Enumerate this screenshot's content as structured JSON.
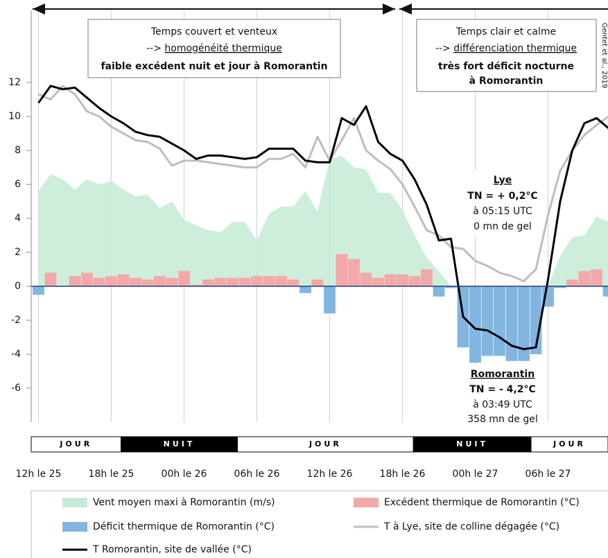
{
  "chart_data": {
    "type": "combo",
    "xlim": [
      -0.6,
      47
    ],
    "xticks": [
      {
        "value": 0,
        "label": "12h le 25"
      },
      {
        "value": 6,
        "label": "18h le 25"
      },
      {
        "value": 12,
        "label": "00h le 26"
      },
      {
        "value": 18,
        "label": "06h le 26"
      },
      {
        "value": 24,
        "label": "12h le 26"
      },
      {
        "value": 30,
        "label": "18h le 26"
      },
      {
        "value": 36,
        "label": "00h le 27"
      },
      {
        "value": 42,
        "label": "06h le 27"
      }
    ],
    "ylim": [
      -8,
      16
    ],
    "yticks": [
      -6,
      -4,
      -2,
      0,
      2,
      4,
      6,
      8,
      10,
      12
    ],
    "grid": true,
    "x": [
      0,
      1,
      2,
      3,
      4,
      5,
      6,
      7,
      8,
      9,
      10,
      11,
      12,
      13,
      14,
      15,
      16,
      17,
      18,
      19,
      20,
      21,
      22,
      23,
      24,
      25,
      26,
      27,
      28,
      29,
      30,
      31,
      32,
      33,
      34,
      35,
      36,
      37,
      38,
      39,
      40,
      41,
      42,
      43,
      44,
      45,
      46,
      47
    ],
    "series": [
      {
        "name": "Vent moyen maxi à Romorantin (m/s)",
        "type": "area",
        "color": "#c6ebd6",
        "values": [
          5.6,
          6.6,
          6.3,
          5.7,
          6.3,
          6.0,
          6.2,
          5.7,
          5.3,
          5.4,
          4.6,
          5.0,
          3.9,
          3.6,
          3.3,
          3.2,
          3.8,
          3.8,
          2.7,
          4.3,
          4.7,
          4.7,
          5.6,
          4.4,
          7.5,
          7.7,
          7.0,
          6.9,
          5.5,
          5.5,
          4.5,
          3.0,
          1.7,
          0.9,
          0,
          0,
          0,
          0,
          0,
          0,
          0,
          0,
          0,
          1.8,
          2.9,
          3.0,
          4.1,
          3.8
        ]
      },
      {
        "name": "Excédent thermique de Romorantin (°C)",
        "type": "bar",
        "color": "#f4a9a8",
        "values": [
          null,
          0.8,
          0,
          0.6,
          0.8,
          0.5,
          0.6,
          0.7,
          0.5,
          0.4,
          0.6,
          0.5,
          0.9,
          0.1,
          0.4,
          0.5,
          0.5,
          0.5,
          0.6,
          0.6,
          0.6,
          0.4,
          null,
          0.4,
          null,
          1.9,
          1.6,
          0.8,
          0.5,
          0.7,
          0.7,
          0.6,
          1.0,
          null,
          null,
          null,
          null,
          null,
          null,
          null,
          null,
          null,
          null,
          null,
          0.4,
          0.9,
          1.0,
          null
        ]
      },
      {
        "name": "Déficit thermique de Romorantin (°C)",
        "type": "bar",
        "color": "#82b6e0",
        "values": [
          -0.5,
          null,
          null,
          null,
          null,
          null,
          null,
          null,
          null,
          null,
          null,
          null,
          null,
          null,
          null,
          null,
          null,
          null,
          null,
          null,
          null,
          null,
          -0.4,
          null,
          -1.6,
          null,
          null,
          null,
          null,
          null,
          null,
          null,
          null,
          -0.6,
          -0.1,
          -3.6,
          -4.5,
          -4.1,
          -4.1,
          -4.4,
          -4.4,
          -4.0,
          -1.2,
          -0.1,
          null,
          null,
          null,
          -0.6
        ]
      },
      {
        "name": "T à Lye, site de colline dégagée (°C)",
        "type": "line",
        "color": "#bdbdbd",
        "values": [
          11.3,
          11.0,
          11.8,
          11.3,
          10.3,
          10.0,
          9.4,
          9.0,
          8.6,
          8.5,
          8.1,
          7.1,
          7.4,
          7.4,
          7.3,
          7.2,
          7.1,
          7.0,
          7.0,
          7.5,
          7.5,
          7.8,
          7.0,
          8.8,
          7.4,
          8.6,
          9.9,
          8.0,
          7.4,
          6.9,
          6.0,
          4.7,
          3.3,
          3.0,
          2.3,
          2.2,
          1.5,
          1.2,
          0.8,
          0.6,
          0.3,
          1.0,
          4.2,
          6.8,
          8.0,
          8.9,
          9.5,
          10.0
        ]
      },
      {
        "name": "T Romorantin, site de vallée (°C)",
        "type": "line",
        "color": "#000000",
        "values": [
          10.8,
          11.8,
          11.6,
          11.7,
          11.1,
          10.5,
          10.0,
          9.6,
          9.1,
          8.9,
          8.8,
          8.4,
          8.0,
          7.5,
          7.7,
          7.7,
          7.6,
          7.5,
          7.6,
          8.1,
          8.1,
          8.1,
          7.4,
          7.3,
          7.3,
          9.9,
          9.5,
          10.6,
          8.5,
          7.8,
          7.4,
          6.3,
          4.8,
          2.7,
          2.8,
          -1.8,
          -2.5,
          -2.6,
          -3.0,
          -3.5,
          -3.7,
          -3.6,
          0.4,
          5.0,
          8.0,
          9.6,
          9.9,
          9.3
        ]
      }
    ],
    "daynight": [
      {
        "label": "JOUR",
        "end": 6.8
      },
      {
        "label": "NUIT",
        "end": 16.4
      },
      {
        "label": "JOUR",
        "end": 30.9
      },
      {
        "label": "NUIT",
        "end": 40.6
      },
      {
        "label": "JOUR"
      }
    ],
    "annotations": {
      "left": {
        "line1": "Temps couvert et venteux",
        "arrow": "--> ",
        "underlined": "homogénéité thermique",
        "bold": "faible excédent nuit et jour à Romorantin"
      },
      "right": {
        "line1": "Temps clair et calme",
        "arrow": "--> ",
        "underlined": "différenciation thermique",
        "bold1": "très fort déficit nocturne",
        "bold2": "à Romorantin"
      },
      "lye": {
        "title": "Lye",
        "tn": "TN = + 0,2°C",
        "time": "à 05:15 UTC",
        "frost": "0 mn de gel"
      },
      "romorantin": {
        "title": "Romorantin",
        "tn": "TN = - 4,2°C",
        "time": "à 03:49 UTC",
        "frost": "358 mn de gel"
      },
      "source": "Gentet et al., 2019"
    }
  }
}
